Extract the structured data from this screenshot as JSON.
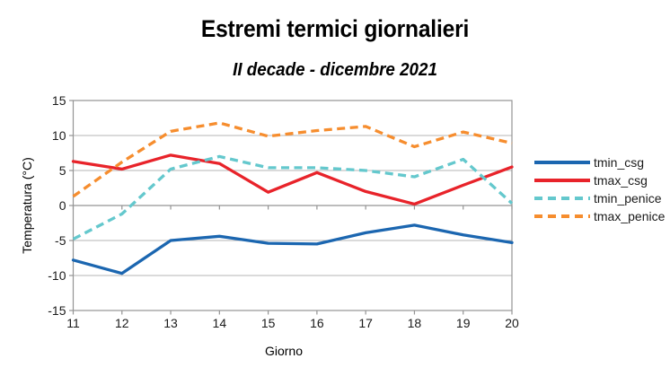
{
  "page": {
    "background": "#ffffff"
  },
  "chart_data": {
    "type": "line",
    "title": "Estremi termici giornalieri",
    "subtitle": "II decade - dicembre 2021",
    "xlabel": "Giorno",
    "ylabel": "Temperatura (°C)",
    "x": [
      11,
      12,
      13,
      14,
      15,
      16,
      17,
      18,
      19,
      20
    ],
    "x_tick_labels": [
      "11",
      "12",
      "13",
      "14",
      "15",
      "16",
      "17",
      "18",
      "19",
      "20"
    ],
    "y_ticks": [
      15,
      10,
      5,
      0,
      -5,
      -10,
      -15
    ],
    "ylim": [
      -15,
      15
    ],
    "grid": "horizontal-only",
    "legend_position": "right",
    "axis_color": "#949494",
    "grid_color": "#b5b5b5",
    "text_color": "#1a1a1a",
    "series": [
      {
        "name": "tmin_csg",
        "color": "#1b66b0",
        "dash": "solid",
        "values": [
          -7.8,
          -9.7,
          -5.0,
          -4.4,
          -5.4,
          -5.5,
          -3.9,
          -2.8,
          -4.2,
          -5.3
        ]
      },
      {
        "name": "tmax_csg",
        "color": "#e8232a",
        "dash": "solid",
        "values": [
          6.3,
          5.2,
          7.2,
          6.0,
          1.9,
          4.7,
          2.0,
          0.2,
          2.9,
          5.5
        ]
      },
      {
        "name": "tmin_penice",
        "color": "#64c8cd",
        "dash": "dashed",
        "values": [
          -4.8,
          -1.2,
          5.2,
          7.0,
          5.4,
          5.4,
          5.0,
          4.1,
          6.6,
          0.3
        ]
      },
      {
        "name": "tmax_penice",
        "color": "#f68d2e",
        "dash": "dashed",
        "values": [
          1.3,
          6.2,
          10.6,
          11.8,
          9.9,
          10.7,
          11.3,
          8.4,
          10.5,
          8.9
        ]
      }
    ]
  }
}
